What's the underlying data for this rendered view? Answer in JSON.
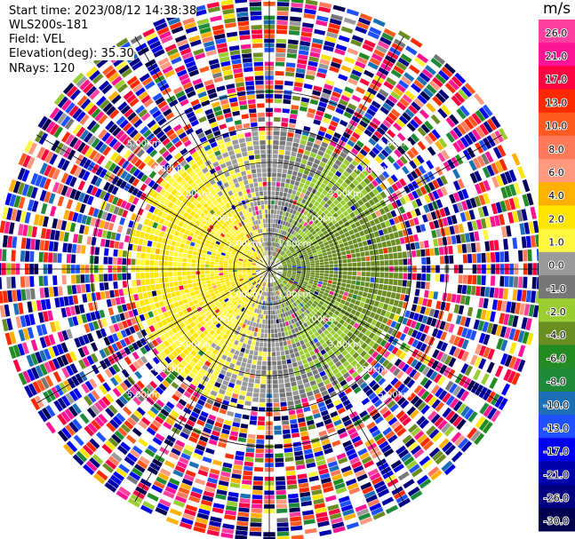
{
  "info": {
    "start_time": "Start time: 2023/08/12 14:38:38",
    "site": "WLS200s-181",
    "field": "Field: VEL",
    "elevation": "Elevation(deg): 35.30",
    "nrays": "NRays: 120"
  },
  "colorbar": {
    "unit": "m/s",
    "labels": [
      "26.0",
      "21.0",
      "17.0",
      "13.0",
      "10.0",
      "8.0",
      "6.0",
      "4.0",
      "2.0",
      "1.0",
      "0.0",
      "-1.0",
      "-2.0",
      "-4.0",
      "-6.0",
      "-8.0",
      "-10.0",
      "-13.0",
      "-17.0",
      "-21.0",
      "-26.0",
      "-30.0"
    ],
    "colors": [
      "#ff40a0",
      "#ff1493",
      "#ff0040",
      "#ff2a00",
      "#ff5a20",
      "#ff7a5a",
      "#ff9a80",
      "#ffb000",
      "#ffe600",
      "#fff740",
      "#9a9a9a",
      "#777777",
      "#9acd32",
      "#6b8e23",
      "#228b22",
      "#1e8b3a",
      "#1b6fb4",
      "#1e50ff",
      "#0000ee",
      "#0000aa",
      "#000080",
      "#000050"
    ]
  },
  "chart_data": {
    "type": "heatmap",
    "projection": "polar-ppi",
    "field": "VEL",
    "units": "m/s",
    "elevation_deg": 35.3,
    "n_rays": 120,
    "range_ring_labels": [
      "1.00km",
      "2.00km",
      "3.00km",
      "4.00km",
      "5.00km"
    ],
    "range_rings_km": [
      1,
      2,
      3,
      4,
      5
    ],
    "max_range_km": 7.0,
    "spoke_angles_deg": [
      0,
      30,
      60,
      90,
      120,
      150,
      180,
      210,
      240,
      270,
      300,
      330
    ],
    "pattern": {
      "west_sector_mean_ms": 2.5,
      "east_sector_mean_ms": -2.5,
      "clear_air_noise_beyond_km": 3.6
    }
  }
}
